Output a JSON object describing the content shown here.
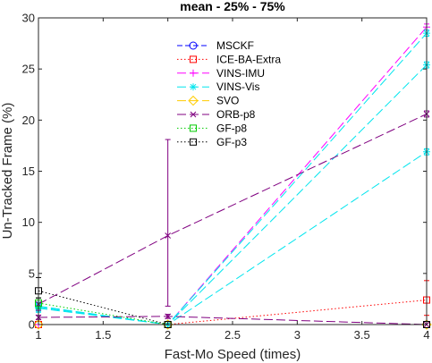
{
  "chart_data": {
    "type": "line",
    "title": "mean - 25% - 75%",
    "xlabel": "Fast-Mo Speed (times)",
    "ylabel": "Un-Tracked Frame (%)",
    "xlim": [
      1,
      4
    ],
    "ylim": [
      0,
      30
    ],
    "xticks": [
      "1",
      "1.5",
      "2",
      "2.5",
      "3",
      "3.5",
      "4"
    ],
    "yticks": [
      "0",
      "5",
      "10",
      "15",
      "20",
      "25",
      "30"
    ],
    "grid": false,
    "legend_position": "upper-center",
    "series": [
      {
        "name": "MSCKF",
        "color": "#0000ff",
        "dash": "6 3",
        "marker": "circle",
        "x": [
          1,
          2,
          4
        ],
        "y": [
          0,
          0,
          0
        ],
        "q1": [
          0,
          0,
          0
        ],
        "q3": [
          0,
          0,
          0
        ]
      },
      {
        "name": "ICE-BA-Extra",
        "color": "#ff0000",
        "dash": "1.5 2.5",
        "marker": "square",
        "x": [
          1,
          2,
          4
        ],
        "y": [
          0,
          0,
          2.4
        ],
        "q1": [
          0,
          0,
          0.9
        ],
        "q3": [
          0,
          0,
          4.3
        ]
      },
      {
        "name": "VINS-IMU",
        "color": "#ff00ff",
        "dash": "10 4",
        "marker": "plus",
        "x": [
          1,
          2,
          4
        ],
        "y": [
          0,
          0,
          29.1
        ],
        "q1": [
          0,
          0,
          28.8
        ],
        "q3": [
          0,
          0,
          29.4
        ]
      },
      {
        "name": "VINS-Vis",
        "color": "#00e5ee",
        "dash": "10 4",
        "marker": "star",
        "x": [
          1,
          2,
          4
        ],
        "y": [
          1.8,
          0,
          28.5
        ],
        "q1": [
          1.4,
          0,
          28.2
        ],
        "q3": [
          2.2,
          0,
          28.8
        ]
      },
      {
        "name": "VINS-Vis",
        "color": "#00e5ee",
        "dash": "10 4",
        "marker": "star",
        "x": [
          1,
          2,
          4
        ],
        "y": [
          1.7,
          0,
          25.4
        ],
        "q1": [
          1.3,
          0,
          25.1
        ],
        "q3": [
          2.1,
          0,
          25.7
        ]
      },
      {
        "name": "VINS-Vis",
        "color": "#00e5ee",
        "dash": "10 4",
        "marker": "star",
        "x": [
          1,
          2,
          4
        ],
        "y": [
          1.6,
          0,
          16.9
        ],
        "q1": [
          1.2,
          0,
          16.6
        ],
        "q3": [
          2.0,
          0,
          17.2
        ]
      },
      {
        "name": "SVO",
        "color": "#ffcc00",
        "dash": "10 4",
        "marker": "diamond",
        "x": [
          1,
          2,
          4
        ],
        "y": [
          0,
          0,
          0
        ],
        "q1": [
          0,
          0,
          0
        ],
        "q3": [
          0,
          0,
          0
        ]
      },
      {
        "name": "ORB-p8",
        "color": "#800080",
        "dash": "10 4",
        "marker": "cross",
        "x": [
          1,
          2,
          4
        ],
        "y": [
          0.7,
          0.8,
          0
        ],
        "q1": [
          0.5,
          0.6,
          0
        ],
        "q3": [
          0.9,
          1.0,
          0
        ]
      },
      {
        "name": "ORB-p8",
        "color": "#800080",
        "dash": "10 4",
        "marker": "cross",
        "x": [
          1,
          2,
          4
        ],
        "y": [
          2.0,
          8.7,
          20.6
        ],
        "q1": [
          1.4,
          1.8,
          20.3
        ],
        "q3": [
          2.6,
          18.1,
          20.9
        ]
      },
      {
        "name": "GF-p8",
        "color": "#00cc00",
        "dash": "1.5 2.5",
        "marker": "square",
        "x": [
          1,
          2,
          4
        ],
        "y": [
          2.1,
          0,
          0
        ],
        "q1": [
          1.6,
          0,
          0
        ],
        "q3": [
          2.6,
          0,
          0
        ]
      },
      {
        "name": "GF-p3",
        "color": "#000000",
        "dash": "1.5 2.5",
        "marker": "square",
        "x": [
          1,
          2,
          4
        ],
        "y": [
          3.3,
          0,
          0
        ],
        "q1": [
          2.6,
          0,
          0
        ],
        "q3": [
          4.6,
          0,
          0
        ]
      }
    ],
    "legend": [
      {
        "name": "MSCKF",
        "color": "#0000ff",
        "dash": "6 3",
        "marker": "circle"
      },
      {
        "name": "ICE-BA-Extra",
        "color": "#ff0000",
        "dash": "1.5 2.5",
        "marker": "square"
      },
      {
        "name": "VINS-IMU",
        "color": "#ff00ff",
        "dash": "10 4",
        "marker": "plus"
      },
      {
        "name": "VINS-Vis",
        "color": "#00e5ee",
        "dash": "10 4",
        "marker": "star"
      },
      {
        "name": "SVO",
        "color": "#ffcc00",
        "dash": "10 4",
        "marker": "diamond"
      },
      {
        "name": "ORB-p8",
        "color": "#800080",
        "dash": "10 4",
        "marker": "cross"
      },
      {
        "name": "GF-p8",
        "color": "#00cc00",
        "dash": "1.5 2.5",
        "marker": "square"
      },
      {
        "name": "GF-p3",
        "color": "#000000",
        "dash": "1.5 2.5",
        "marker": "square"
      }
    ]
  }
}
